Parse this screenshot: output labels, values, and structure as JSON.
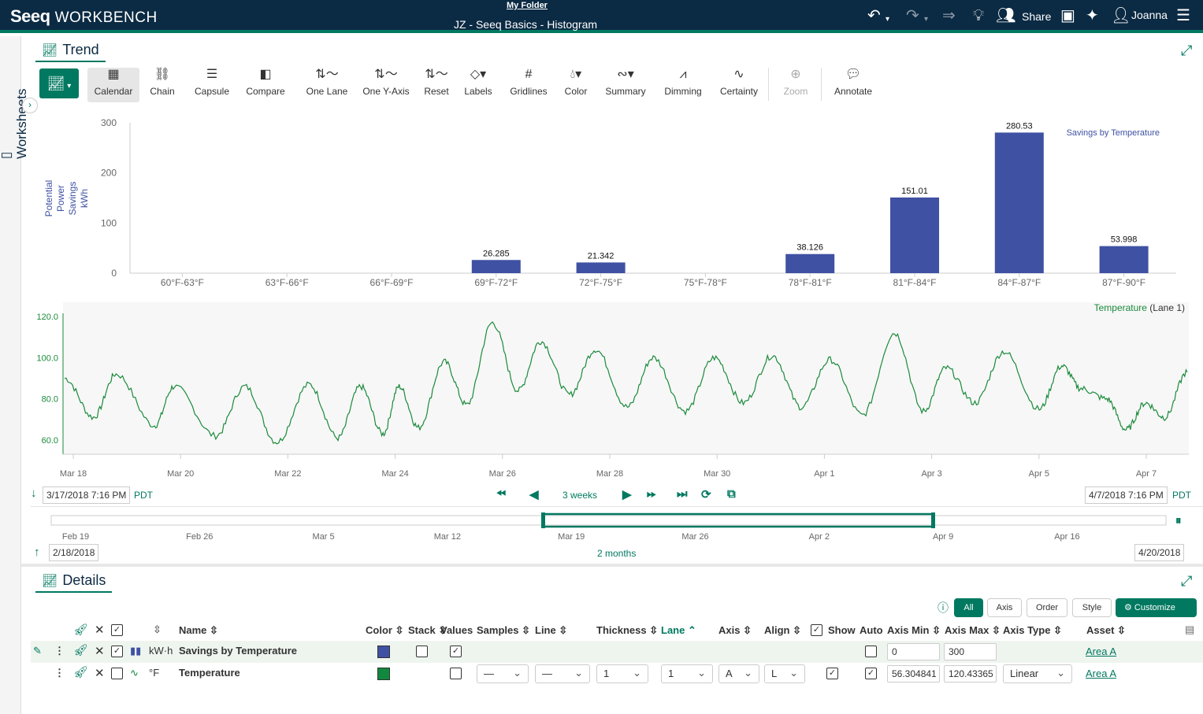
{
  "header": {
    "logo": "Seeq",
    "product": "WORKBENCH",
    "folder": "My Folder",
    "doc_title": "JZ - Seeq Basics - Histogram",
    "share_label": "Share",
    "user_name": "Joanna"
  },
  "rail": {
    "label": "Worksheets"
  },
  "trend_panel": {
    "tab_label": "Trend"
  },
  "toolbar": {
    "calendar": "Calendar",
    "chain": "Chain",
    "capsule": "Capsule",
    "compare": "Compare",
    "one_lane": "One Lane",
    "one_y_axis": "One Y-Axis",
    "reset": "Reset",
    "labels": "Labels",
    "gridlines": "Gridlines",
    "color": "Color",
    "summary": "Summary",
    "dimming": "Dimming",
    "certainty": "Certainty",
    "zoom": "Zoom",
    "annotate": "Annotate"
  },
  "chart_data": [
    {
      "type": "bar",
      "title": "Savings by Temperature",
      "ylabel_lines": [
        "Potential",
        "Power",
        "Savings",
        "kWh"
      ],
      "ylim": [
        0,
        300
      ],
      "yticks": [
        "0",
        "100",
        "200",
        "300"
      ],
      "categories": [
        "60°F-63°F",
        "63°F-66°F",
        "66°F-69°F",
        "69°F-72°F",
        "72°F-75°F",
        "75°F-78°F",
        "78°F-81°F",
        "81°F-84°F",
        "84°F-87°F",
        "87°F-90°F"
      ],
      "values": [
        null,
        null,
        null,
        26.285,
        21.342,
        null,
        38.126,
        151.01,
        280.53,
        53.998
      ],
      "value_labels": [
        "",
        "",
        "",
        "26.285",
        "21.342",
        "",
        "38.126",
        "151.01",
        "280.53",
        "53.998"
      ],
      "color": "#3f51a3"
    },
    {
      "type": "line",
      "series_name": "Temperature",
      "lane_label": "(Lane 1)",
      "ylim": [
        55,
        125
      ],
      "yticks": [
        "60.0",
        "80.0",
        "100.0",
        "120.0"
      ],
      "xticks": [
        "Mar 18",
        "Mar 20",
        "Mar 22",
        "Mar 24",
        "Mar 26",
        "Mar 28",
        "Mar 30",
        "Apr 1",
        "Apr 3",
        "Apr 5",
        "Apr 7"
      ],
      "x_days": [
        0,
        20.98
      ],
      "color": "#1a8a3a",
      "daily_peaks": [
        {
          "day": 0.0,
          "y": 90
        },
        {
          "day": 0.9,
          "y": 71
        },
        {
          "day": 1.6,
          "y": 92
        },
        {
          "day": 2.8,
          "y": 67
        },
        {
          "day": 3.4,
          "y": 86
        },
        {
          "day": 4.7,
          "y": 62
        },
        {
          "day": 5.6,
          "y": 86
        },
        {
          "day": 6.6,
          "y": 59
        },
        {
          "day": 7.6,
          "y": 87
        },
        {
          "day": 8.5,
          "y": 61
        },
        {
          "day": 9.2,
          "y": 86
        },
        {
          "day": 9.9,
          "y": 63
        },
        {
          "day": 10.4,
          "y": 86
        },
        {
          "day": 11.0,
          "y": 66
        },
        {
          "day": 11.8,
          "y": 98
        },
        {
          "day": 12.5,
          "y": 77
        },
        {
          "day": 13.3,
          "y": 117
        },
        {
          "day": 14.1,
          "y": 84
        },
        {
          "day": 14.8,
          "y": 108
        },
        {
          "day": 15.7,
          "y": 82
        },
        {
          "day": 16.5,
          "y": 104
        },
        {
          "day": 17.5,
          "y": 76
        },
        {
          "day": 18.3,
          "y": 100
        },
        {
          "day": 19.3,
          "y": 74
        },
        {
          "day": 20.2,
          "y": 100
        },
        {
          "day": 21.1,
          "y": 78
        },
        {
          "day": 22.0,
          "y": 101
        },
        {
          "day": 22.9,
          "y": 76
        },
        {
          "day": 23.8,
          "y": 99
        },
        {
          "day": 24.8,
          "y": 72
        },
        {
          "day": 25.8,
          "y": 112
        },
        {
          "day": 26.7,
          "y": 74
        },
        {
          "day": 27.4,
          "y": 95
        },
        {
          "day": 28.3,
          "y": 78
        },
        {
          "day": 29.2,
          "y": 103
        },
        {
          "day": 30.3,
          "y": 75
        },
        {
          "day": 31.0,
          "y": 96
        },
        {
          "day": 31.6,
          "y": 85
        },
        {
          "day": 32.4,
          "y": 80
        },
        {
          "day": 33.0,
          "y": 65
        },
        {
          "day": 33.6,
          "y": 78
        },
        {
          "day": 34.2,
          "y": 71
        },
        {
          "day": 34.9,
          "y": 93
        }
      ]
    }
  ],
  "date_range": {
    "start": "3/17/2018 7:16 PM",
    "end": "4/7/2018 7:16 PM",
    "tz": "PDT",
    "duration": "3 weeks"
  },
  "timeline": {
    "ticks": [
      "Feb 19",
      "Feb 26",
      "Mar 5",
      "Mar 12",
      "Mar 19",
      "Mar 26",
      "Apr 2",
      "Apr 9",
      "Apr 16"
    ],
    "start": "2/18/2018",
    "end": "4/20/2018",
    "duration": "2 months"
  },
  "details_panel": {
    "tab_label": "Details",
    "filters": {
      "all": "All",
      "axis": "Axis",
      "order": "Order",
      "style": "Style",
      "customize": "Customize"
    },
    "columns": {
      "name": "Name",
      "color": "Color",
      "stack": "Stack",
      "values": "Values",
      "samples": "Samples",
      "line": "Line",
      "thickness": "Thickness",
      "lane": "Lane",
      "axis": "Axis",
      "align": "Align",
      "show": "Show",
      "auto": "Auto",
      "axis_min": "Axis Min",
      "axis_max": "Axis Max",
      "axis_type": "Axis Type",
      "asset": "Asset"
    },
    "rows": [
      {
        "unit": "kW·h",
        "name": "Savings by Temperature",
        "color": "#3f51a3",
        "axis_min": "0",
        "axis_max": "300",
        "asset": "Area A"
      },
      {
        "unit": "°F",
        "name": "Temperature",
        "color": "#10893e",
        "samples": "—",
        "line": "—",
        "thickness": "1",
        "lane": "1",
        "axis": "A",
        "align": "L",
        "axis_min": "56.304841",
        "axis_max": "120.43365",
        "axis_type": "Linear",
        "asset": "Area A"
      }
    ]
  }
}
